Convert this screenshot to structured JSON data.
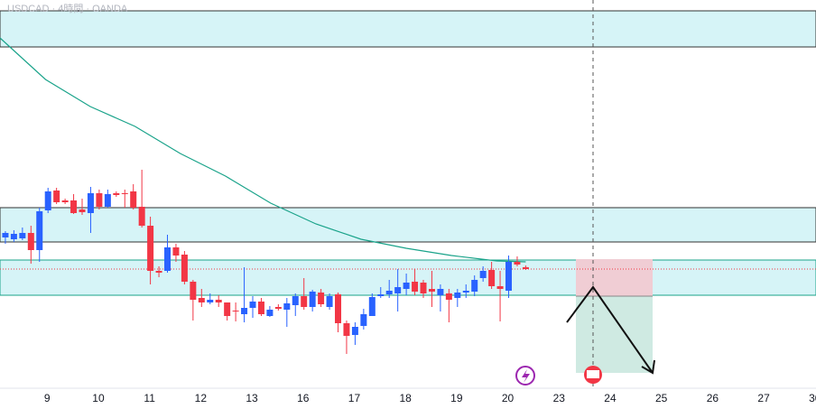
{
  "chart_data": {
    "type": "candlestick",
    "title": "USDCAD · 4時間 · OANDA",
    "up_color": "#2962ff",
    "down_color": "#f23645",
    "ma_color": "#1aa38a",
    "ylim": [
      1.35,
      1.393
    ],
    "xlim": [
      -0.63,
      95.03
    ],
    "xticks": [
      {
        "value": 4.9,
        "label": "9"
      },
      {
        "value": 10.9,
        "label": "10"
      },
      {
        "value": 16.9,
        "label": "11"
      },
      {
        "value": 22.9,
        "label": "12"
      },
      {
        "value": 28.9,
        "label": "13"
      },
      {
        "value": 34.9,
        "label": "16"
      },
      {
        "value": 40.9,
        "label": "17"
      },
      {
        "value": 46.9,
        "label": "18"
      },
      {
        "value": 52.9,
        "label": "19"
      },
      {
        "value": 58.9,
        "label": "20"
      },
      {
        "value": 64.9,
        "label": "23"
      },
      {
        "value": 70.9,
        "label": "24"
      },
      {
        "value": 76.9,
        "label": "25"
      },
      {
        "value": 82.9,
        "label": "26"
      },
      {
        "value": 88.9,
        "label": "27"
      },
      {
        "value": 94.9,
        "label": "30"
      }
    ],
    "open": [
      1.3667,
      1.3665,
      1.3666,
      1.3672,
      1.3653,
      1.3697,
      1.3719,
      1.3708,
      1.3708,
      1.3698,
      1.3694,
      1.3716,
      1.3701,
      1.3716,
      1.3716,
      1.3718,
      1.3701,
      1.368,
      1.363,
      1.363,
      1.3656,
      1.3648,
      1.3618,
      1.36,
      1.3595,
      1.3598,
      1.3595,
      1.3586,
      1.3582,
      1.3589,
      1.3596,
      1.358,
      1.359,
      1.3587,
      1.3592,
      1.3602,
      1.359,
      1.3606,
      1.359,
      1.3604,
      1.3572,
      1.3559,
      1.3569,
      1.358,
      1.3602,
      1.3604,
      1.3605,
      1.361,
      1.3618,
      1.3617,
      1.361,
      1.3603,
      1.3605,
      1.36,
      1.3606,
      1.3607,
      1.3622,
      1.3631,
      1.3613,
      1.3608,
      1.364,
      1.3634
    ],
    "high": [
      1.3674,
      1.3675,
      1.3678,
      1.368,
      1.37,
      1.3722,
      1.3722,
      1.371,
      1.3715,
      1.371,
      1.3723,
      1.372,
      1.372,
      1.3718,
      1.372,
      1.3726,
      1.3742,
      1.369,
      1.3635,
      1.367,
      1.366,
      1.3652,
      1.362,
      1.361,
      1.3605,
      1.3603,
      1.3595,
      1.3595,
      1.3634,
      1.3602,
      1.36,
      1.3591,
      1.3593,
      1.36,
      1.3605,
      1.3622,
      1.3609,
      1.361,
      1.3605,
      1.3606,
      1.3575,
      1.3573,
      1.3588,
      1.3605,
      1.3612,
      1.362,
      1.3632,
      1.3627,
      1.3632,
      1.362,
      1.363,
      1.3615,
      1.361,
      1.361,
      1.3615,
      1.3625,
      1.3635,
      1.364,
      1.363,
      1.3647,
      1.3646,
      1.3636
    ],
    "low": [
      1.366,
      1.3662,
      1.3664,
      1.3638,
      1.364,
      1.3694,
      1.3704,
      1.3704,
      1.3693,
      1.3692,
      1.3672,
      1.3698,
      1.37,
      1.3712,
      1.37,
      1.3698,
      1.3678,
      1.3615,
      1.3623,
      1.3628,
      1.364,
      1.3615,
      1.3575,
      1.359,
      1.3593,
      1.359,
      1.3575,
      1.3574,
      1.3573,
      1.3578,
      1.358,
      1.3579,
      1.3586,
      1.3568,
      1.358,
      1.3587,
      1.3585,
      1.359,
      1.3587,
      1.3562,
      1.3538,
      1.3548,
      1.3565,
      1.358,
      1.36,
      1.36,
      1.3585,
      1.3603,
      1.3603,
      1.36,
      1.359,
      1.3585,
      1.3573,
      1.359,
      1.36,
      1.3602,
      1.3618,
      1.361,
      1.3574,
      1.36,
      1.3635,
      1.3631
    ],
    "close": [
      1.3672,
      1.3671,
      1.3672,
      1.3653,
      1.3696,
      1.3718,
      1.3706,
      1.3706,
      1.3694,
      1.3695,
      1.3716,
      1.3701,
      1.3715,
      1.3714,
      1.3715,
      1.37,
      1.368,
      1.363,
      1.3628,
      1.3656,
      1.3647,
      1.3618,
      1.3598,
      1.3595,
      1.3598,
      1.3595,
      1.358,
      1.3585,
      1.3589,
      1.3596,
      1.3582,
      1.3587,
      1.3588,
      1.3594,
      1.3602,
      1.359,
      1.3607,
      1.3593,
      1.3602,
      1.3572,
      1.3558,
      1.3568,
      1.3582,
      1.3601,
      1.3604,
      1.3608,
      1.3612,
      1.3617,
      1.3607,
      1.3605,
      1.3607,
      1.361,
      1.3598,
      1.3606,
      1.3608,
      1.362,
      1.363,
      1.3613,
      1.361,
      1.364,
      1.3637,
      1.3632
    ],
    "ma": {
      "x": [
        -0.63,
        4.7,
        9.95,
        15.2,
        20.5,
        25.8,
        31.1,
        36.4,
        41.7,
        47.0,
        52.3,
        57.6,
        61
      ],
      "values": [
        1.3888,
        1.3842,
        1.3812,
        1.379,
        1.376,
        1.3735,
        1.3705,
        1.3682,
        1.3665,
        1.3655,
        1.3647,
        1.3641,
        1.364
      ]
    },
    "current_price": 1.3632
  }
}
